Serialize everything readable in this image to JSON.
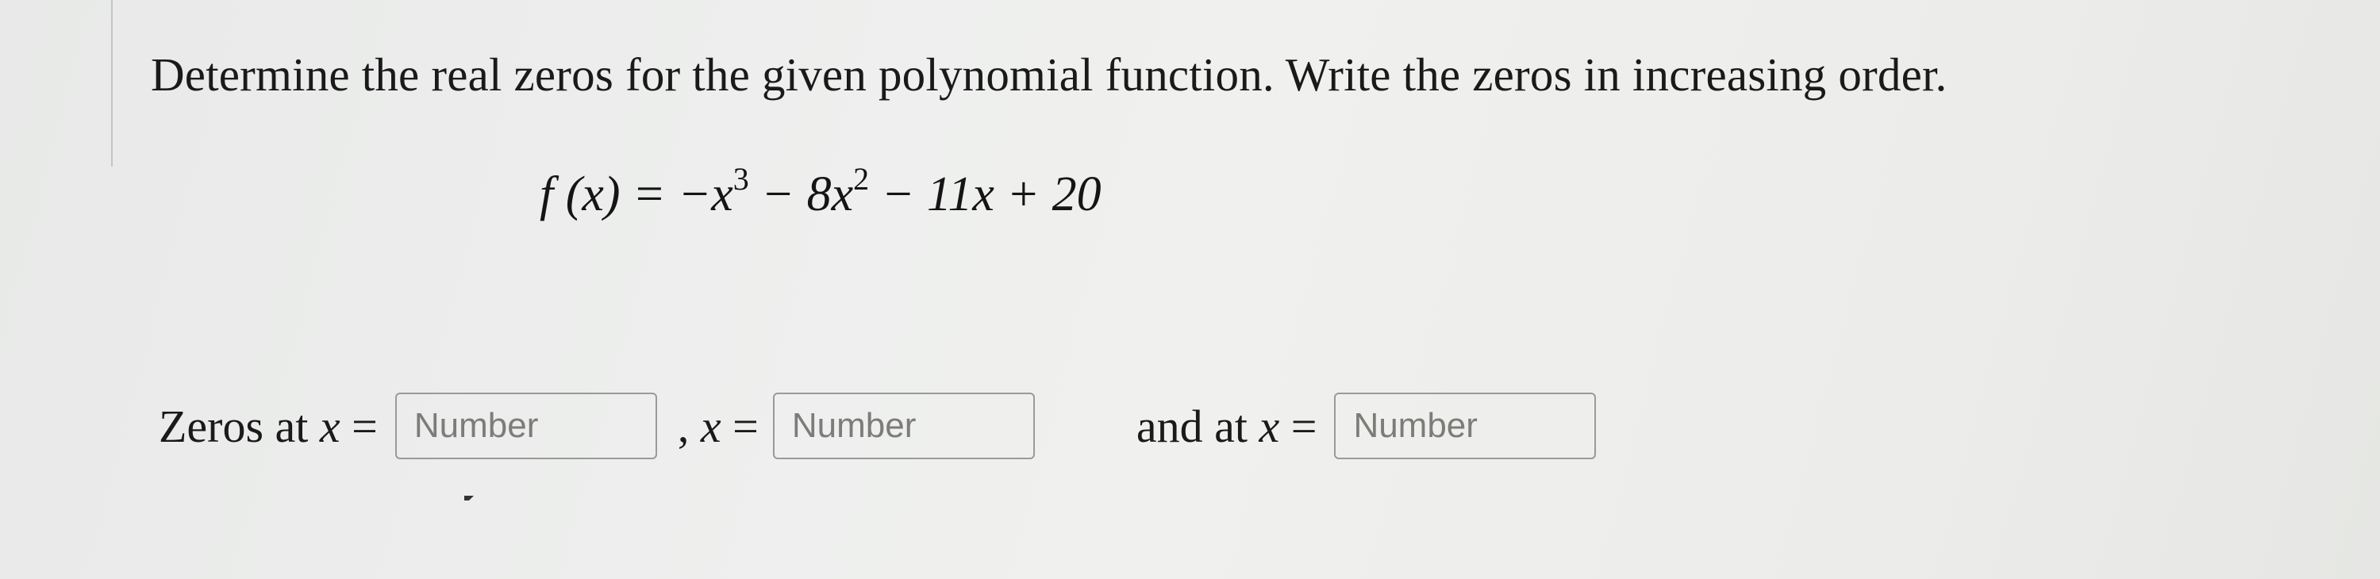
{
  "prompt": "Determine the real zeros for the given polynomial function. Write the zeros in increasing order.",
  "equation": {
    "lhs": "f (x) = ",
    "rhs_parts": {
      "t1": "−x",
      "e1": "3",
      "t2": " − 8x",
      "e2": "2",
      "t3": " − 11x + 20"
    }
  },
  "answers": {
    "label1": "Zeros at ",
    "var1": "x",
    "eq": " = ",
    "placeholder1": "Number",
    "sep1": ", ",
    "var2": "x",
    "placeholder2": "Number",
    "label2": "and at ",
    "var3": "x",
    "placeholder3": "Number"
  }
}
